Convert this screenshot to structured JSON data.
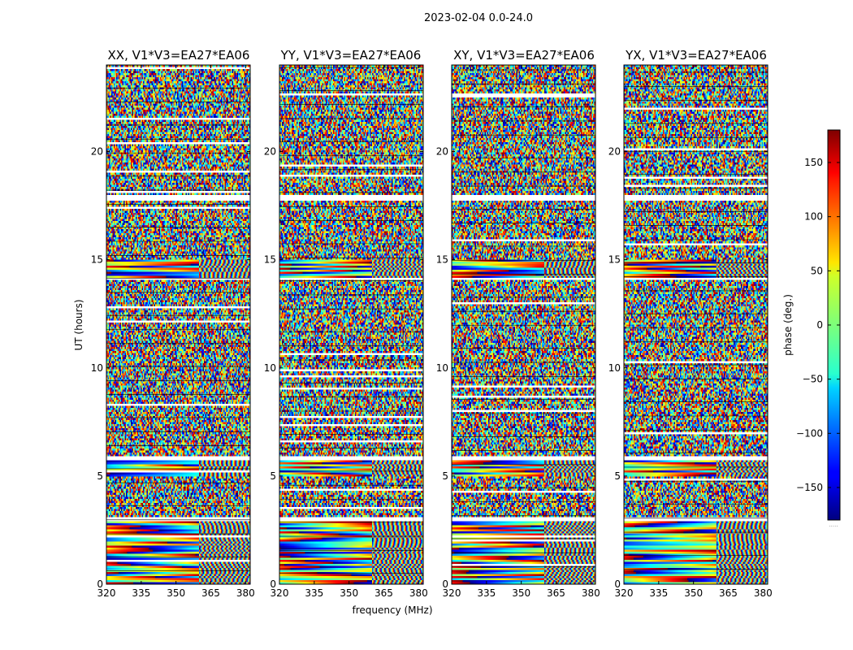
{
  "chart_data": {
    "type": "heatmap",
    "suptitle": "2023-02-04 0.0-24.0",
    "xlabel": "frequency (MHz)",
    "ylabel": "UT (hours)",
    "xlim": [
      320,
      382
    ],
    "ylim": [
      0,
      24
    ],
    "xticks": [
      320,
      335,
      350,
      365,
      380
    ],
    "yticks": [
      0,
      5,
      10,
      15,
      20
    ],
    "panels": [
      {
        "title": "XX, V1*V3=EA27*EA06",
        "seed": 11
      },
      {
        "title": "YY, V1*V3=EA27*EA06",
        "seed": 23
      },
      {
        "title": "XY, V1*V3=EA27*EA06",
        "seed": 37
      },
      {
        "title": "YX, V1*V3=EA27*EA06",
        "seed": 53
      }
    ],
    "colorbar": {
      "label": "phase (deg.)",
      "range": [
        -180,
        180
      ],
      "ticks": [
        150,
        100,
        50,
        0,
        -50,
        -100,
        -150
      ],
      "tick_labels": [
        "150",
        "100",
        "50",
        "0",
        "−50",
        "−100",
        "−150"
      ],
      "colormap": "jet",
      "under_label": "....."
    },
    "flagged_time_ranges": [
      [
        5.75,
        5.95
      ],
      [
        14.05,
        14.2
      ],
      [
        17.75,
        18.0
      ],
      [
        2.95,
        3.1
      ]
    ],
    "strong_signal_time_ranges": [
      [
        0.0,
        1.6
      ],
      [
        14.2,
        15.0
      ],
      [
        5.0,
        5.75
      ],
      [
        1.6,
        3.0
      ]
    ]
  }
}
